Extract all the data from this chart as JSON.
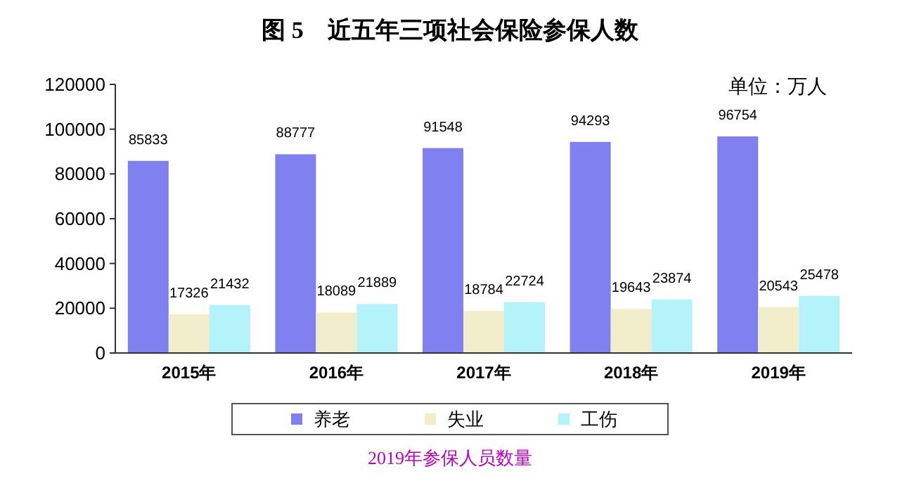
{
  "chart_data": {
    "type": "bar",
    "title": "图 5　近五年三项社会保险参保人数",
    "categories": [
      "2015年",
      "2016年",
      "2017年",
      "2018年",
      "2019年"
    ],
    "series": [
      {
        "name": "养老",
        "color": "#8080f0",
        "values": [
          85833,
          88777,
          91548,
          94293,
          96754
        ]
      },
      {
        "name": "失业",
        "color": "#f2eecb",
        "values": [
          17326,
          18089,
          18784,
          19643,
          20543
        ]
      },
      {
        "name": "工伤",
        "color": "#b5f3fb",
        "values": [
          21432,
          21889,
          22724,
          23874,
          25478
        ]
      }
    ],
    "ylim": [
      0,
      120000
    ],
    "yticks": [
      0,
      20000,
      40000,
      60000,
      80000,
      100000,
      120000
    ],
    "grid": false,
    "data_labels": true,
    "legend": "bottom",
    "annotations": [
      "单位：万人",
      "2019年参保人员数量"
    ]
  }
}
